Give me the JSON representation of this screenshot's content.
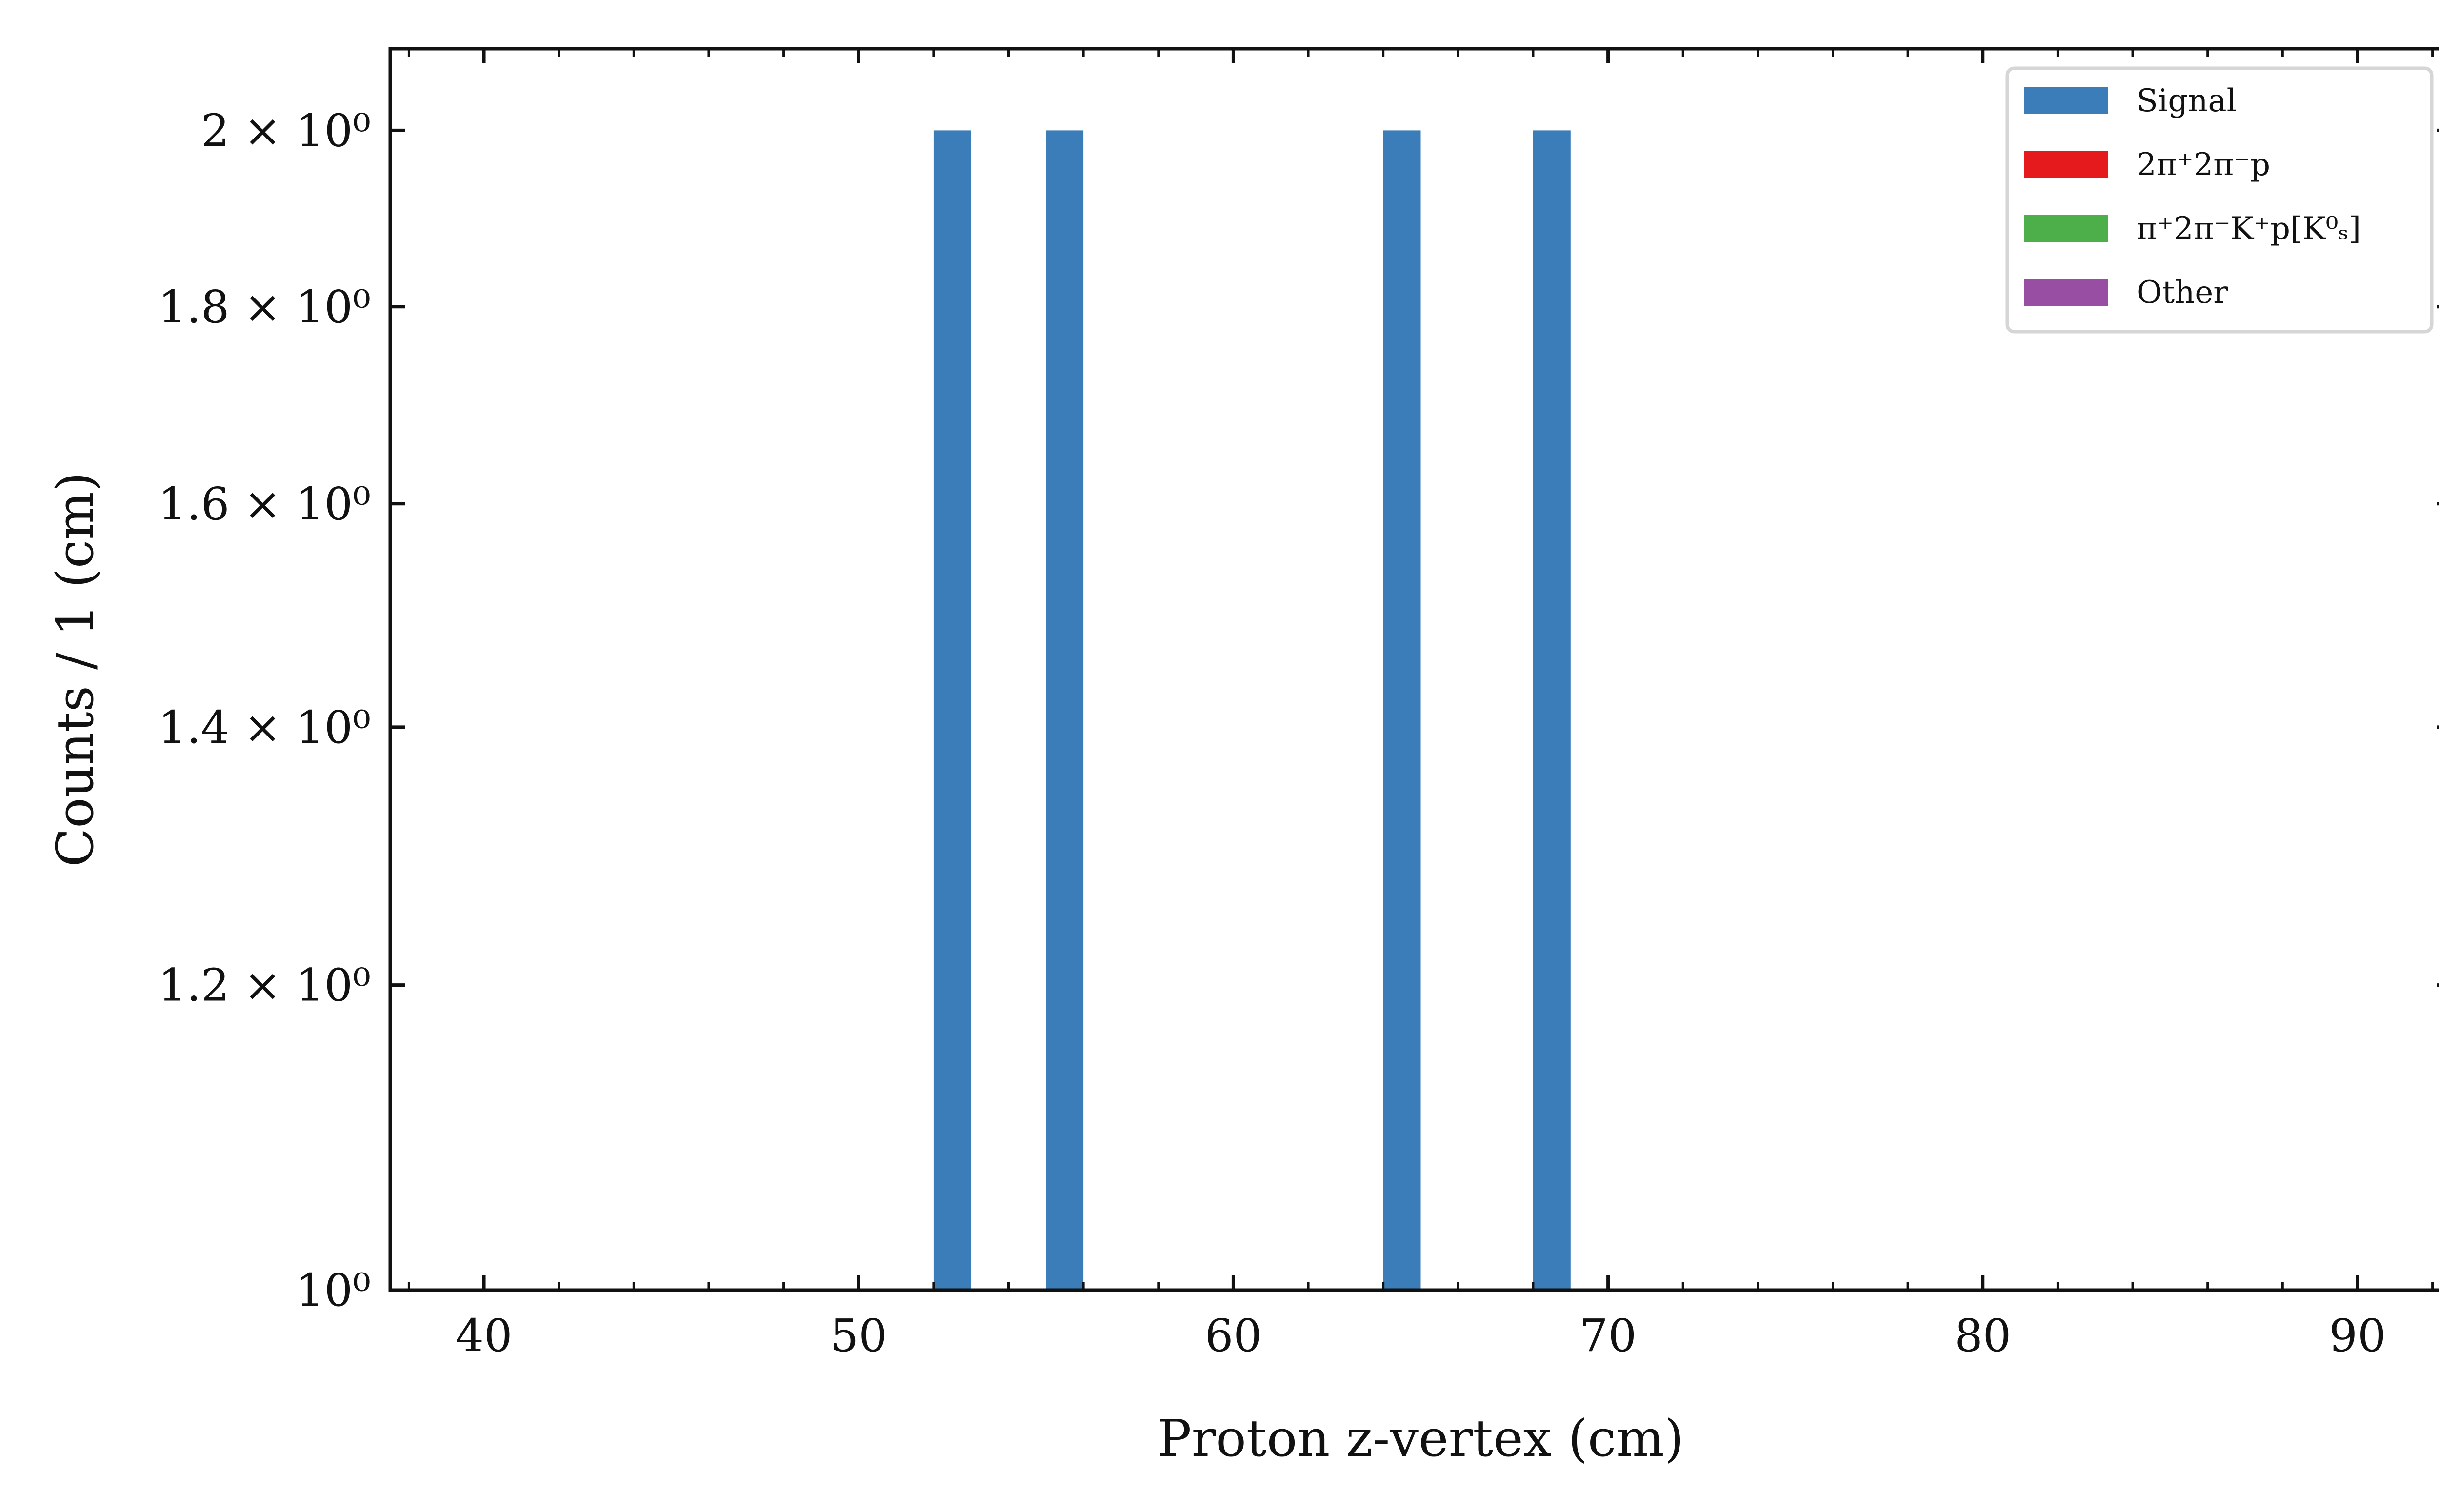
{
  "chart_data": {
    "type": "bar",
    "xlabel": "Proton z-vertex (cm)",
    "ylabel": "Counts / 1 (cm)",
    "x_range": [
      37.5,
      92.5
    ],
    "y_scale": "log",
    "y_range": [
      1.0,
      2.1
    ],
    "x_ticks": [
      {
        "value": 40,
        "label": "40"
      },
      {
        "value": 50,
        "label": "50"
      },
      {
        "value": 60,
        "label": "60"
      },
      {
        "value": 70,
        "label": "70"
      },
      {
        "value": 80,
        "label": "80"
      },
      {
        "value": 90,
        "label": "90"
      }
    ],
    "y_ticks": [
      {
        "value": 1.0,
        "label": "10⁰"
      },
      {
        "value": 1.2,
        "label": "1.2 × 10⁰"
      },
      {
        "value": 1.4,
        "label": "1.4 × 10⁰"
      },
      {
        "value": 1.6,
        "label": "1.6 × 10⁰"
      },
      {
        "value": 1.8,
        "label": "1.8 × 10⁰"
      },
      {
        "value": 2.0,
        "label": "2 × 10⁰"
      }
    ],
    "bin_width": 1,
    "series": [
      {
        "name": "Signal",
        "color": "#3a7db8",
        "bins": [
          {
            "x_low": 52,
            "x_high": 53,
            "count": 2
          },
          {
            "x_low": 55,
            "x_high": 56,
            "count": 2
          },
          {
            "x_low": 64,
            "x_high": 65,
            "count": 2
          },
          {
            "x_low": 68,
            "x_high": 69,
            "count": 2
          }
        ]
      },
      {
        "name": "2π⁺2π⁻p",
        "color": "#e41a1c",
        "bins": []
      },
      {
        "name": "π⁺2π⁻K⁺p[K⁰ₛ]",
        "color": "#4daf4a",
        "bins": []
      },
      {
        "name": "Other",
        "color": "#984ea3",
        "bins": []
      }
    ],
    "legend_position": "top-right",
    "grid": false
  }
}
